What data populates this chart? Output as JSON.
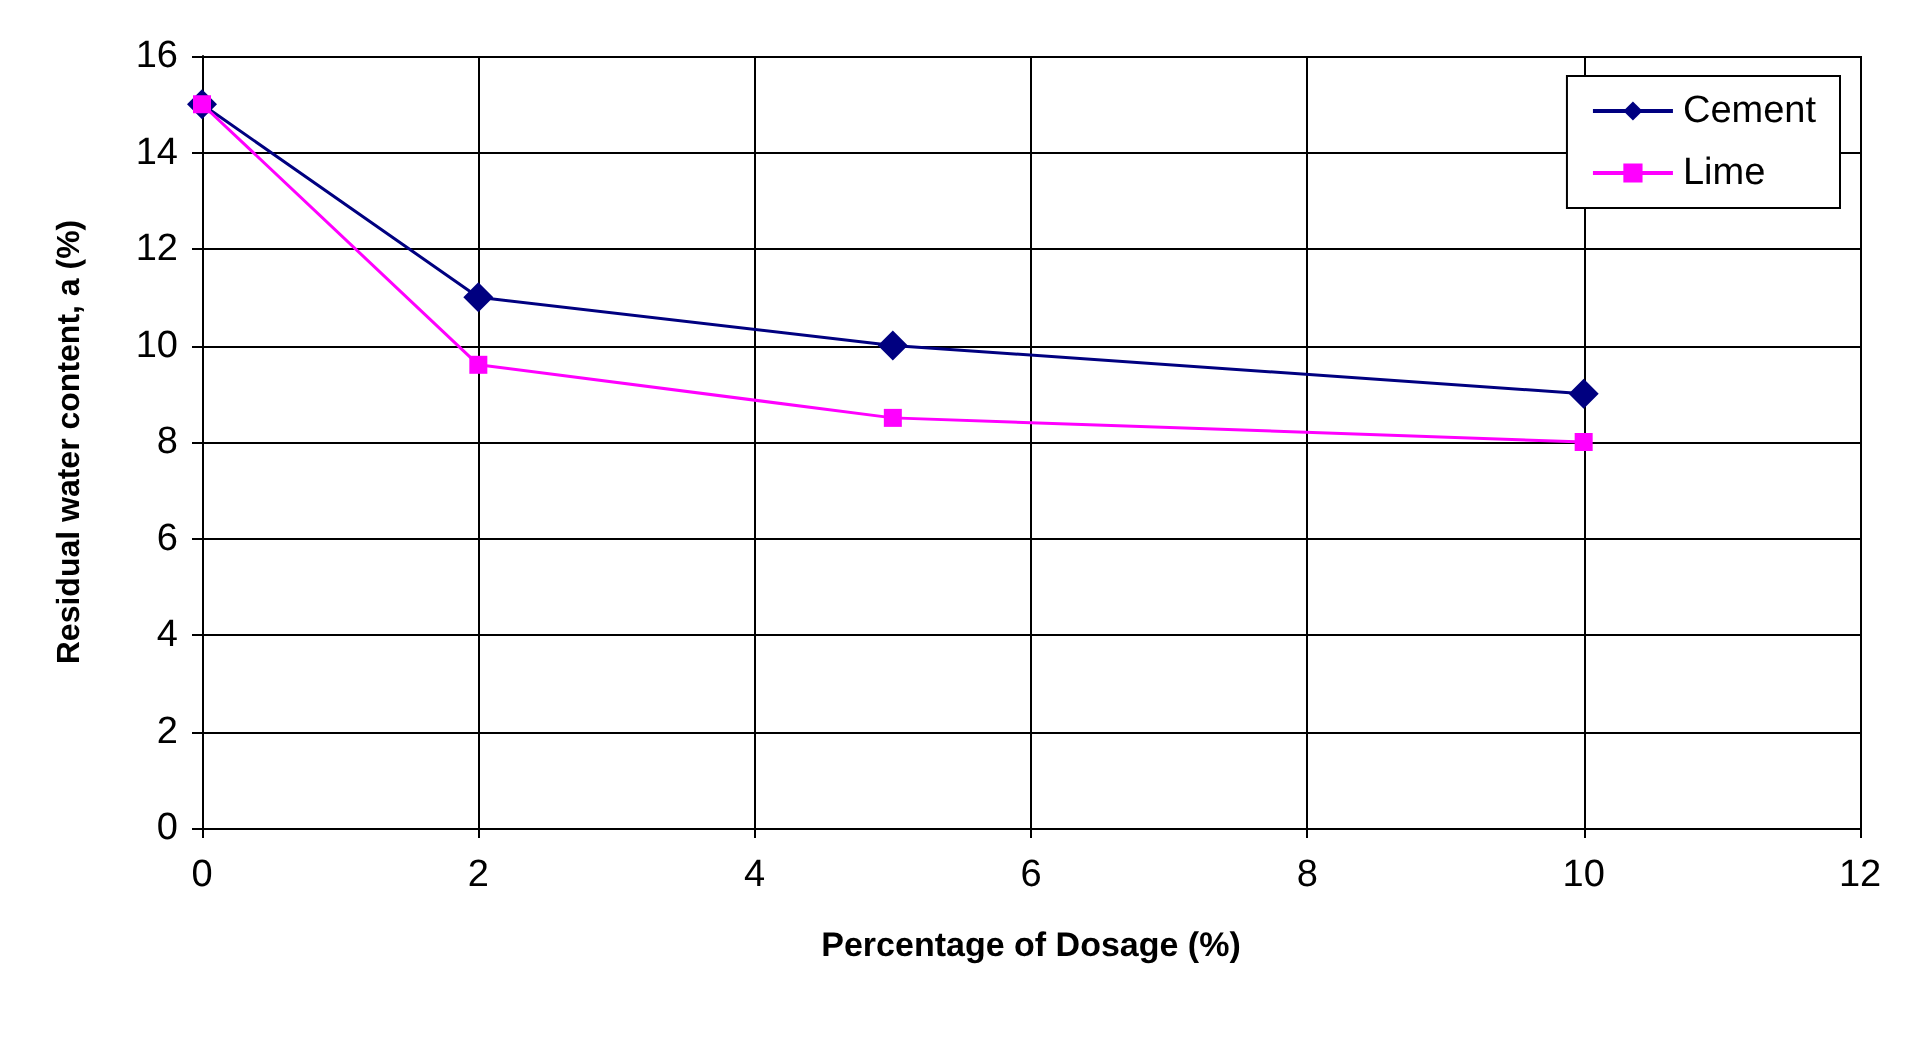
{
  "chart_data": {
    "type": "line",
    "xlabel": "Percentage of Dosage (%)",
    "ylabel": "Residual water content, a (%)",
    "x": [
      0,
      2,
      5,
      10
    ],
    "series": [
      {
        "name": "Cement",
        "color": "#000080",
        "marker": "diamond",
        "values": [
          15,
          11,
          10,
          9
        ]
      },
      {
        "name": "Lime",
        "color": "#ff00ff",
        "marker": "square",
        "values": [
          15,
          9.6,
          8.5,
          8
        ]
      }
    ],
    "xlim": [
      0,
      12
    ],
    "xticks": [
      0,
      2,
      4,
      6,
      8,
      10,
      12
    ],
    "ylim": [
      0,
      16
    ],
    "yticks": [
      0,
      2,
      4,
      6,
      8,
      10,
      12,
      14,
      16
    ],
    "grid": true,
    "legend": "top right"
  }
}
